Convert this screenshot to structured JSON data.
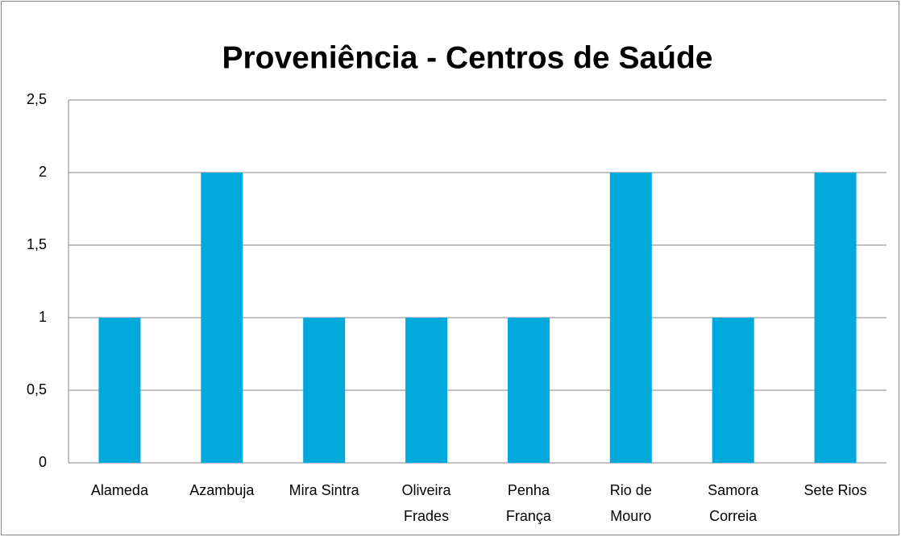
{
  "chart_data": {
    "type": "bar",
    "title": "Proveniência - Centros de Saúde",
    "categories": [
      "Alameda",
      "Azambuja",
      "Mira Sintra",
      "Oliveira Frades",
      "Penha França",
      "Rio de Mouro",
      "Samora Correia",
      "Sete Rios"
    ],
    "values": [
      1,
      2,
      1,
      1,
      1,
      2,
      1,
      2
    ],
    "color": "#00a9db",
    "ylim": [
      0,
      2.5
    ],
    "yticks": [
      0,
      {
        "value": 0.5,
        "label": "0,5"
      },
      1,
      {
        "value": 1.5,
        "label": "1,5"
      },
      2,
      {
        "value": 2.5,
        "label": "2,5"
      }
    ],
    "grid": true
  }
}
